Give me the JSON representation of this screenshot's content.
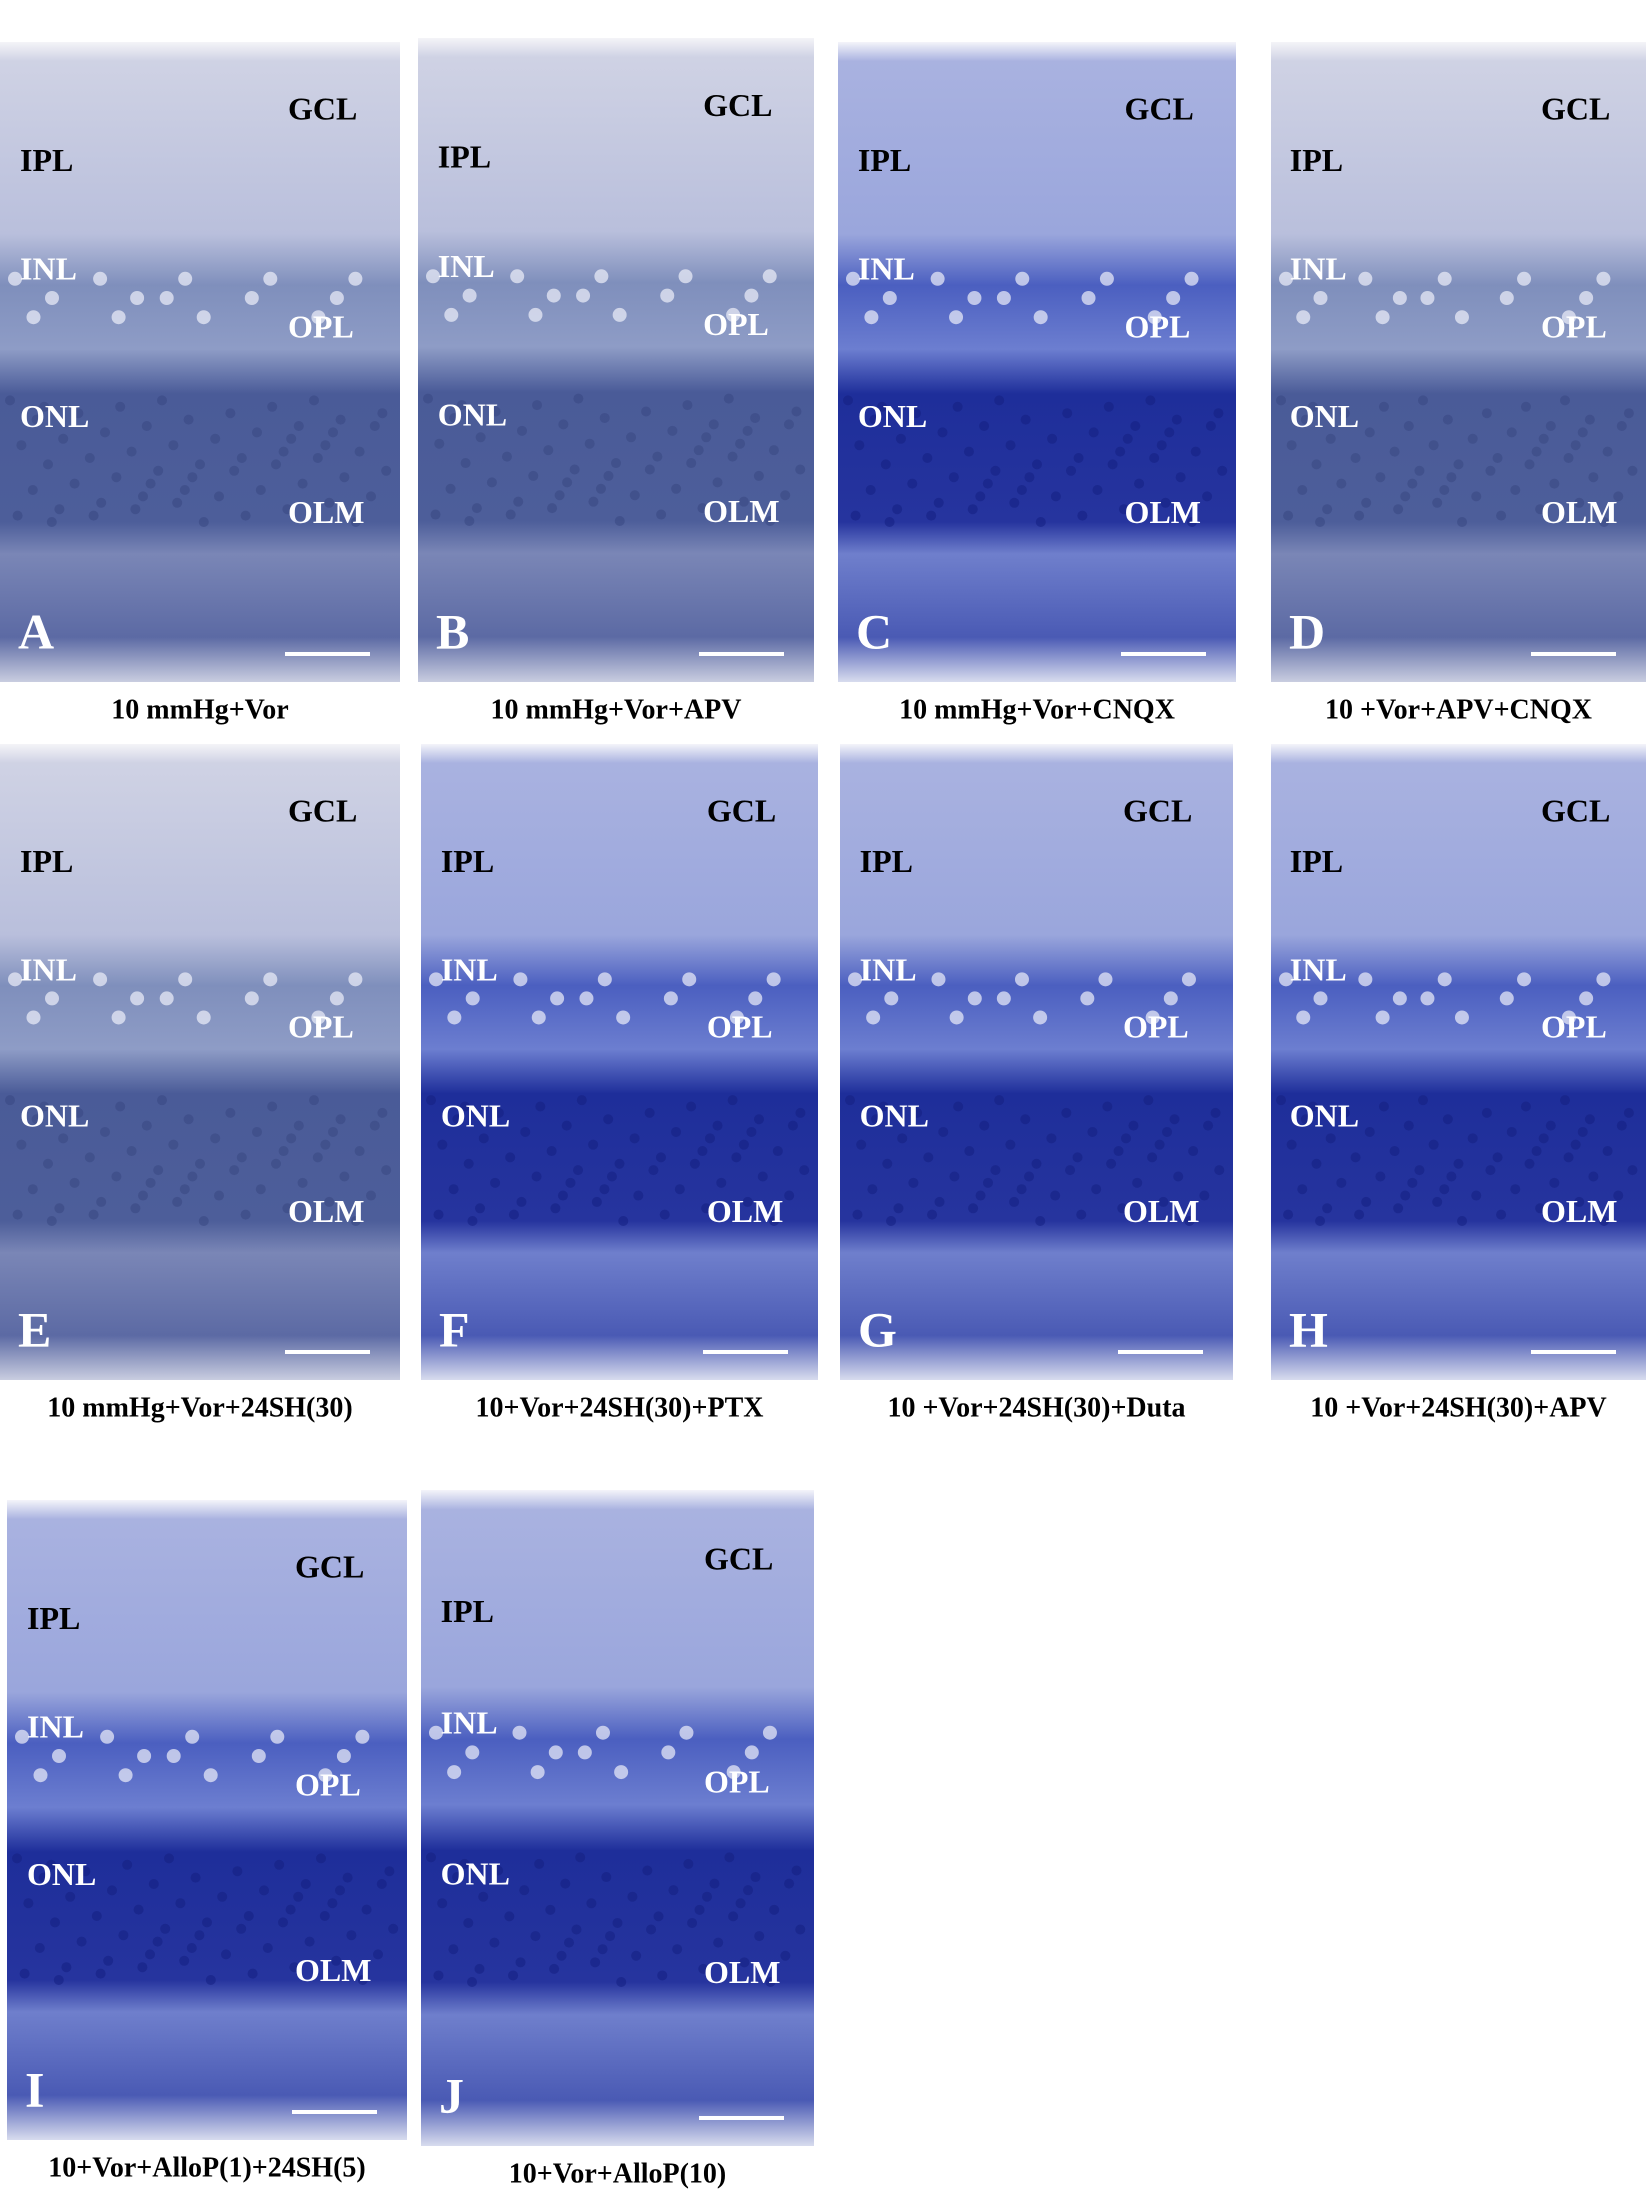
{
  "panels": [
    {
      "letter": "A",
      "caption": "10 mmHg+Vor",
      "layers": [
        "GCL",
        "IPL",
        "INL",
        "OPL",
        "ONL",
        "OLM"
      ]
    },
    {
      "letter": "B",
      "caption": "10 mmHg+Vor+APV",
      "layers": [
        "GCL",
        "IPL",
        "INL",
        "OPL",
        "ONL",
        "OLM"
      ]
    },
    {
      "letter": "C",
      "caption": "10 mmHg+Vor+CNQX",
      "layers": [
        "GCL",
        "IPL",
        "INL",
        "OPL",
        "ONL",
        "OLM"
      ]
    },
    {
      "letter": "D",
      "caption": "10 +Vor+APV+CNQX",
      "layers": [
        "GCL",
        "IPL",
        "INL",
        "OPL",
        "ONL",
        "OLM"
      ]
    },
    {
      "letter": "E",
      "caption": "10 mmHg+Vor+24SH(30)",
      "layers": [
        "GCL",
        "IPL",
        "INL",
        "OPL",
        "ONL",
        "OLM"
      ]
    },
    {
      "letter": "F",
      "caption": "10+Vor+24SH(30)+PTX",
      "layers": [
        "GCL",
        "IPL",
        "INL",
        "OPL",
        "ONL",
        "OLM"
      ]
    },
    {
      "letter": "G",
      "caption": "10 +Vor+24SH(30)+Duta",
      "layers": [
        "GCL",
        "IPL",
        "INL",
        "OPL",
        "ONL",
        "OLM"
      ]
    },
    {
      "letter": "H",
      "caption": "10 +Vor+24SH(30)+APV",
      "layers": [
        "GCL",
        "IPL",
        "INL",
        "OPL",
        "ONL",
        "OLM"
      ]
    },
    {
      "letter": "I",
      "caption": "10+Vor+AlloP(1)+24SH(5)",
      "layers": [
        "GCL",
        "IPL",
        "INL",
        "OPL",
        "ONL",
        "OLM"
      ]
    },
    {
      "letter": "J",
      "caption": "10+Vor+AlloP(10)",
      "layers": [
        "GCL",
        "IPL",
        "INL",
        "OPL",
        "ONL",
        "OLM"
      ]
    }
  ]
}
